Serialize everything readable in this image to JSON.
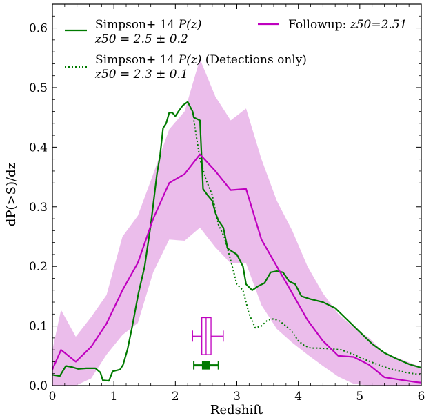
{
  "chart_data": {
    "type": "line",
    "xlabel": "Redshift",
    "ylabel": "dP(>S)/dz",
    "xlim": [
      0,
      6
    ],
    "ylim": [
      0,
      0.64
    ],
    "xticks": [
      0,
      1,
      2,
      3,
      4,
      5,
      6
    ],
    "yticks": [
      0.0,
      0.1,
      0.2,
      0.3,
      0.4,
      0.5,
      0.6
    ],
    "xtick_labels": [
      "0",
      "1",
      "2",
      "3",
      "4",
      "5",
      "6"
    ],
    "ytick_labels": [
      "0.0",
      "0.1",
      "0.2",
      "0.3",
      "0.4",
      "0.5",
      "0.6"
    ],
    "legend": {
      "entry1_line1": "Simpson+ 14 ",
      "entry1_line1_math": "P(z)",
      "entry1_line2": "z50 = 2.5 ± 0.2",
      "entry2_line1": "Simpson+ 14 ",
      "entry2_line1_math": "P(z)",
      "entry2_line1_tail": " (Detections only)",
      "entry2_line2": "z50 = 2.3 ± 0.1",
      "entry3": "Followup: ",
      "entry3_math": "z50=2.51"
    },
    "colors": {
      "green": "#007a00",
      "magenta": "#bf00bf",
      "band": "#ebbdeb"
    },
    "series": [
      {
        "name": "Simpson+ 14 P(z)",
        "style": "solid",
        "color": "#007a00",
        "points": [
          [
            0,
            0.018
          ],
          [
            0.12,
            0.016
          ],
          [
            0.22,
            0.033
          ],
          [
            0.32,
            0.031
          ],
          [
            0.42,
            0.028
          ],
          [
            0.55,
            0.029
          ],
          [
            0.7,
            0.029
          ],
          [
            0.78,
            0.022
          ],
          [
            0.82,
            0.009
          ],
          [
            0.92,
            0.008
          ],
          [
            0.98,
            0.024
          ],
          [
            1.1,
            0.027
          ],
          [
            1.15,
            0.035
          ],
          [
            1.22,
            0.06
          ],
          [
            1.3,
            0.1
          ],
          [
            1.4,
            0.155
          ],
          [
            1.5,
            0.2
          ],
          [
            1.6,
            0.27
          ],
          [
            1.7,
            0.355
          ],
          [
            1.75,
            0.385
          ],
          [
            1.8,
            0.432
          ],
          [
            1.85,
            0.44
          ],
          [
            1.9,
            0.458
          ],
          [
            1.95,
            0.458
          ],
          [
            2.0,
            0.452
          ],
          [
            2.05,
            0.46
          ],
          [
            2.12,
            0.47
          ],
          [
            2.2,
            0.476
          ],
          [
            2.28,
            0.46
          ],
          [
            2.3,
            0.45
          ],
          [
            2.4,
            0.445
          ],
          [
            2.45,
            0.33
          ],
          [
            2.52,
            0.32
          ],
          [
            2.6,
            0.31
          ],
          [
            2.65,
            0.29
          ],
          [
            2.7,
            0.277
          ],
          [
            2.78,
            0.265
          ],
          [
            2.85,
            0.23
          ],
          [
            3.0,
            0.22
          ],
          [
            3.1,
            0.2
          ],
          [
            3.15,
            0.17
          ],
          [
            3.25,
            0.16
          ],
          [
            3.35,
            0.167
          ],
          [
            3.45,
            0.172
          ],
          [
            3.55,
            0.19
          ],
          [
            3.65,
            0.192
          ],
          [
            3.75,
            0.19
          ],
          [
            3.85,
            0.175
          ],
          [
            3.95,
            0.17
          ],
          [
            4.05,
            0.15
          ],
          [
            4.2,
            0.145
          ],
          [
            4.4,
            0.14
          ],
          [
            4.6,
            0.13
          ],
          [
            4.8,
            0.11
          ],
          [
            5.0,
            0.09
          ],
          [
            5.2,
            0.07
          ],
          [
            5.4,
            0.055
          ],
          [
            5.6,
            0.045
          ],
          [
            5.8,
            0.036
          ],
          [
            6.0,
            0.03
          ]
        ]
      },
      {
        "name": "Simpson+ 14 P(z) (Detections only)",
        "style": "dotted",
        "color": "#007a00",
        "points": [
          [
            2.3,
            0.445
          ],
          [
            2.4,
            0.38
          ],
          [
            2.5,
            0.345
          ],
          [
            2.6,
            0.32
          ],
          [
            2.7,
            0.27
          ],
          [
            2.8,
            0.248
          ],
          [
            2.9,
            0.21
          ],
          [
            3.0,
            0.17
          ],
          [
            3.1,
            0.16
          ],
          [
            3.2,
            0.12
          ],
          [
            3.3,
            0.097
          ],
          [
            3.4,
            0.1
          ],
          [
            3.5,
            0.11
          ],
          [
            3.6,
            0.112
          ],
          [
            3.7,
            0.108
          ],
          [
            3.8,
            0.1
          ],
          [
            3.9,
            0.09
          ],
          [
            4.0,
            0.075
          ],
          [
            4.1,
            0.067
          ],
          [
            4.2,
            0.063
          ],
          [
            4.3,
            0.063
          ],
          [
            4.5,
            0.062
          ],
          [
            4.7,
            0.06
          ],
          [
            4.9,
            0.052
          ],
          [
            5.1,
            0.043
          ],
          [
            5.3,
            0.035
          ],
          [
            5.5,
            0.028
          ],
          [
            5.75,
            0.022
          ],
          [
            6.0,
            0.018
          ]
        ]
      },
      {
        "name": "Followup: z50=2.51",
        "style": "solid",
        "color": "#bf00bf",
        "points": [
          [
            0,
            0.027
          ],
          [
            0.14,
            0.06
          ],
          [
            0.38,
            0.04
          ],
          [
            0.63,
            0.065
          ],
          [
            0.88,
            0.104
          ],
          [
            1.14,
            0.16
          ],
          [
            1.39,
            0.206
          ],
          [
            1.64,
            0.28
          ],
          [
            1.9,
            0.34
          ],
          [
            2.15,
            0.355
          ],
          [
            2.4,
            0.388
          ],
          [
            2.65,
            0.36
          ],
          [
            2.9,
            0.328
          ],
          [
            3.15,
            0.33
          ],
          [
            3.4,
            0.245
          ],
          [
            3.65,
            0.2
          ],
          [
            3.9,
            0.155
          ],
          [
            4.15,
            0.11
          ],
          [
            4.4,
            0.075
          ],
          [
            4.65,
            0.05
          ],
          [
            4.9,
            0.048
          ],
          [
            5.15,
            0.035
          ],
          [
            5.4,
            0.014
          ],
          [
            5.65,
            0.01
          ],
          [
            5.9,
            0.006
          ],
          [
            6.0,
            0.005
          ]
        ]
      }
    ],
    "band": {
      "name": "Followup uncertainty",
      "upper": [
        [
          0,
          0.06
        ],
        [
          0.14,
          0.127
        ],
        [
          0.38,
          0.082
        ],
        [
          0.63,
          0.115
        ],
        [
          0.88,
          0.152
        ],
        [
          1.14,
          0.25
        ],
        [
          1.39,
          0.285
        ],
        [
          1.64,
          0.355
        ],
        [
          1.9,
          0.43
        ],
        [
          2.15,
          0.46
        ],
        [
          2.4,
          0.548
        ],
        [
          2.65,
          0.485
        ],
        [
          2.9,
          0.445
        ],
        [
          3.15,
          0.465
        ],
        [
          3.4,
          0.38
        ],
        [
          3.65,
          0.31
        ],
        [
          3.9,
          0.26
        ],
        [
          4.15,
          0.2
        ],
        [
          4.4,
          0.155
        ],
        [
          4.65,
          0.12
        ],
        [
          4.9,
          0.098
        ],
        [
          5.15,
          0.08
        ],
        [
          5.4,
          0.055
        ],
        [
          5.65,
          0.045
        ],
        [
          5.9,
          0.035
        ],
        [
          6.0,
          0.032
        ]
      ],
      "lower": [
        [
          0,
          0.0
        ],
        [
          0.14,
          0.0
        ],
        [
          0.38,
          0.0
        ],
        [
          0.63,
          0.012
        ],
        [
          0.88,
          0.052
        ],
        [
          1.14,
          0.085
        ],
        [
          1.39,
          0.105
        ],
        [
          1.64,
          0.19
        ],
        [
          1.9,
          0.245
        ],
        [
          2.15,
          0.243
        ],
        [
          2.4,
          0.265
        ],
        [
          2.65,
          0.232
        ],
        [
          2.9,
          0.205
        ],
        [
          3.15,
          0.205
        ],
        [
          3.4,
          0.135
        ],
        [
          3.65,
          0.095
        ],
        [
          3.9,
          0.072
        ],
        [
          4.15,
          0.052
        ],
        [
          4.4,
          0.033
        ],
        [
          4.65,
          0.015
        ],
        [
          4.9,
          0.003
        ],
        [
          5.15,
          0.0
        ],
        [
          5.4,
          0.0
        ],
        [
          5.65,
          0.0
        ],
        [
          5.9,
          0.0
        ],
        [
          6.0,
          0.0
        ]
      ]
    },
    "boxplot": {
      "color": "#bf00bf",
      "y": 0.083,
      "whisker_low": 2.28,
      "q1": 2.43,
      "median": 2.5,
      "q3": 2.58,
      "whisker_high": 2.78,
      "box_half_height": 0.031
    },
    "errorbar": {
      "color": "#007a00",
      "x": 2.5,
      "xerr_low": 2.3,
      "xerr_high": 2.7,
      "y": 0.034
    }
  }
}
